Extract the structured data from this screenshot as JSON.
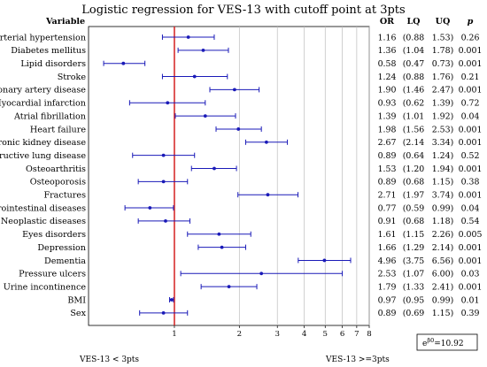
{
  "chart_data": {
    "type": "forest",
    "title": "Logistic regression for VES-13 with cutoff point at 3pts",
    "scale": "log",
    "reference_line": 1,
    "xlim": [
      0.4,
      8
    ],
    "xticks": [
      1,
      2,
      3,
      4,
      5,
      6,
      7,
      8
    ],
    "xtick_labels": [
      "1",
      "2",
      "3",
      "4",
      "5",
      "6",
      "7",
      "8"
    ],
    "grid": "vertical",
    "columns": {
      "variable": "Variable",
      "or": "OR",
      "lq": "LQ",
      "uq": "UQ",
      "p": "p"
    },
    "rows": [
      {
        "label": "Arterial hypertension",
        "or": "1.16",
        "lq": "(0.88",
        "uq": "1.53)",
        "p": "0.26",
        "or_v": 1.16,
        "lq_v": 0.88,
        "uq_v": 1.53
      },
      {
        "label": "Diabetes mellitus",
        "or": "1.36",
        "lq": "(1.04",
        "uq": "1.78)",
        "p": "0.001",
        "or_v": 1.36,
        "lq_v": 1.04,
        "uq_v": 1.78
      },
      {
        "label": "Lipid disorders",
        "or": "0.58",
        "lq": "(0.47",
        "uq": "0.73)",
        "p": "0.001",
        "or_v": 0.58,
        "lq_v": 0.47,
        "uq_v": 0.73
      },
      {
        "label": "Stroke",
        "or": "1.24",
        "lq": "(0.88",
        "uq": "1.76)",
        "p": "0.21",
        "or_v": 1.24,
        "lq_v": 0.88,
        "uq_v": 1.76
      },
      {
        "label": "Coronary artery disease",
        "or": "1.90",
        "lq": "(1.46",
        "uq": "2.47)",
        "p": "0.001",
        "or_v": 1.9,
        "lq_v": 1.46,
        "uq_v": 2.47
      },
      {
        "label": "Myocardial infarction",
        "or": "0.93",
        "lq": "(0.62",
        "uq": "1.39)",
        "p": "0.72",
        "or_v": 0.93,
        "lq_v": 0.62,
        "uq_v": 1.39
      },
      {
        "label": "Atrial fibrillation",
        "or": "1.39",
        "lq": "(1.01",
        "uq": "1.92)",
        "p": "0.04",
        "or_v": 1.39,
        "lq_v": 1.01,
        "uq_v": 1.92
      },
      {
        "label": "Heart failure",
        "or": "1.98",
        "lq": "(1.56",
        "uq": "2.53)",
        "p": "0.001",
        "or_v": 1.98,
        "lq_v": 1.56,
        "uq_v": 2.53
      },
      {
        "label": "Chronic kidney disease",
        "or": "2.67",
        "lq": "(2.14",
        "uq": "3.34)",
        "p": "0.001",
        "or_v": 2.67,
        "lq_v": 2.14,
        "uq_v": 3.34
      },
      {
        "label": "Obstructive lung disease",
        "or": "0.89",
        "lq": "(0.64",
        "uq": "1.24)",
        "p": "0.52",
        "or_v": 0.89,
        "lq_v": 0.64,
        "uq_v": 1.24
      },
      {
        "label": "Osteoarthritis",
        "or": "1.53",
        "lq": "(1.20",
        "uq": "1.94)",
        "p": "0.001",
        "or_v": 1.53,
        "lq_v": 1.2,
        "uq_v": 1.94
      },
      {
        "label": "Osteoporosis",
        "or": "0.89",
        "lq": "(0.68",
        "uq": "1.15)",
        "p": "0.38",
        "or_v": 0.89,
        "lq_v": 0.68,
        "uq_v": 1.15
      },
      {
        "label": "Fractures",
        "or": "2.71",
        "lq": "(1.97",
        "uq": "3.74)",
        "p": "0.001",
        "or_v": 2.71,
        "lq_v": 1.97,
        "uq_v": 3.74
      },
      {
        "label": "Gastrointestinal diseases",
        "or": "0.77",
        "lq": "(0.59",
        "uq": "0.99)",
        "p": "0.04",
        "or_v": 0.77,
        "lq_v": 0.59,
        "uq_v": 0.99
      },
      {
        "label": "Neoplastic diseases",
        "or": "0.91",
        "lq": "(0.68",
        "uq": "1.18)",
        "p": "0.54",
        "or_v": 0.91,
        "lq_v": 0.68,
        "uq_v": 1.18
      },
      {
        "label": "Eyes disorders",
        "or": "1.61",
        "lq": "(1.15",
        "uq": "2.26)",
        "p": "0.005",
        "or_v": 1.61,
        "lq_v": 1.15,
        "uq_v": 2.26
      },
      {
        "label": "Depression",
        "or": "1.66",
        "lq": "(1.29",
        "uq": "2.14)",
        "p": "0.001",
        "or_v": 1.66,
        "lq_v": 1.29,
        "uq_v": 2.14
      },
      {
        "label": "Dementia",
        "or": "4.96",
        "lq": "(3.75",
        "uq": "6.56)",
        "p": "0.001",
        "or_v": 4.96,
        "lq_v": 3.75,
        "uq_v": 6.56
      },
      {
        "label": "Pressure ulcers",
        "or": "2.53",
        "lq": "(1.07",
        "uq": "6.00)",
        "p": "0.03",
        "or_v": 2.53,
        "lq_v": 1.07,
        "uq_v": 6.0
      },
      {
        "label": "Urine incontinence",
        "or": "1.79",
        "lq": "(1.33",
        "uq": "2.41)",
        "p": "0.001",
        "or_v": 1.79,
        "lq_v": 1.33,
        "uq_v": 2.41
      },
      {
        "label": "BMI",
        "or": "0.97",
        "lq": "(0.95",
        "uq": "0.99)",
        "p": "0.01",
        "or_v": 0.97,
        "lq_v": 0.95,
        "uq_v": 0.99
      },
      {
        "label": "Sex",
        "or": "0.89",
        "lq": "(0.69",
        "uq": "1.15)",
        "p": "0.39",
        "or_v": 0.89,
        "lq_v": 0.69,
        "uq_v": 1.15
      }
    ],
    "legend_box": "e^{b0} = 10.92",
    "legend_base": "e",
    "legend_sup": "β0",
    "legend_value": "=10.92",
    "footer_left": "VES-13 < 3pts",
    "footer_right": "VES-13 >=3pts",
    "colors": {
      "marker": "#1a1ab8",
      "reference": "#d42020",
      "grid": "#bdbdbd",
      "text": "#000000"
    }
  }
}
